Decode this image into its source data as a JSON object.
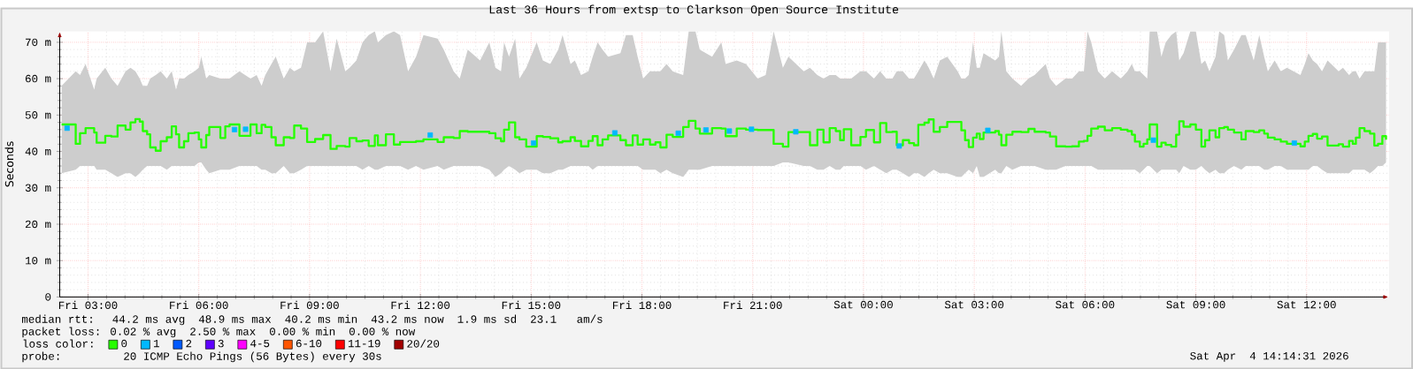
{
  "chart_data": {
    "type": "step",
    "title": "Last 36 Hours from extsp to Clarkson Open Source Institute",
    "ylabel": "Seconds",
    "legend_title": "loss color:",
    "legend": "bottom",
    "grid": true,
    "xlim": [
      "2026-04-03T02:14",
      "2026-04-04T14:14"
    ],
    "ylim": [
      0,
      73
    ],
    "xticks": [
      {
        "value": "2026-04-03T03:00",
        "label": "Fri 03:00"
      },
      {
        "value": "2026-04-03T06:00",
        "label": "Fri 06:00"
      },
      {
        "value": "2026-04-03T09:00",
        "label": "Fri 09:00"
      },
      {
        "value": "2026-04-03T12:00",
        "label": "Fri 12:00"
      },
      {
        "value": "2026-04-03T15:00",
        "label": "Fri 15:00"
      },
      {
        "value": "2026-04-03T18:00",
        "label": "Fri 18:00"
      },
      {
        "value": "2026-04-03T21:00",
        "label": "Fri 21:00"
      },
      {
        "value": "2026-04-04T00:00",
        "label": "Sat 00:00"
      },
      {
        "value": "2026-04-04T03:00",
        "label": "Sat 03:00"
      },
      {
        "value": "2026-04-04T06:00",
        "label": "Sat 06:00"
      },
      {
        "value": "2026-04-04T09:00",
        "label": "Sat 09:00"
      },
      {
        "value": "2026-04-04T12:00",
        "label": "Sat 12:00"
      }
    ],
    "yticks": [
      0,
      {
        "value": 10,
        "label": "10 m"
      },
      {
        "value": 20,
        "label": "20 m"
      },
      {
        "value": 30,
        "label": "30 m"
      },
      {
        "value": 40,
        "label": "40 m"
      },
      {
        "value": 50,
        "label": "50 m"
      },
      {
        "value": 60,
        "label": "60 m"
      },
      {
        "value": 70,
        "label": "70 m"
      }
    ],
    "annotations": [
      "median rtt:  44.2 ms avg  48.9 ms max  40.2 ms min  43.2 ms now  1.9 ms sd  23.1   am/s",
      "packet loss: 0.02 % avg  2.50 % max  0.00 % min  0.00 % now",
      "probe:       20 ICMP Echo Pings (56 Bytes) every 30s",
      "Sat Apr  4 14:14:31 2026"
    ],
    "series": [
      {
        "name": "0",
        "color": "#26ff00",
        "x": [
          "2026-04-03T02:17",
          "2026-04-03T02:40",
          "2026-04-03T02:47",
          "2026-04-03T02:56",
          "2026-04-03T03:10",
          "2026-04-03T03:14",
          "2026-04-03T03:28",
          "2026-04-03T03:38",
          "2026-04-03T03:48",
          "2026-04-03T04:01",
          "2026-04-03T04:09",
          "2026-04-03T04:17",
          "2026-04-03T04:24",
          "2026-04-03T04:29",
          "2026-04-03T04:36",
          "2026-04-03T04:41",
          "2026-04-03T04:50",
          "2026-04-03T04:58",
          "2026-04-03T05:08",
          "2026-04-03T05:16",
          "2026-04-03T05:23",
          "2026-04-03T05:28",
          "2026-04-03T05:36",
          "2026-04-03T05:43",
          "2026-04-03T05:53",
          "2026-04-03T06:00",
          "2026-04-03T06:04",
          "2026-04-03T06:12",
          "2026-04-03T06:17",
          "2026-04-03T06:35",
          "2026-04-03T06:43",
          "2026-04-03T06:50",
          "2026-04-03T07:06",
          "2026-04-03T07:24",
          "2026-04-03T07:34",
          "2026-04-03T07:42",
          "2026-04-03T07:48",
          "2026-04-03T07:58",
          "2026-04-03T08:05",
          "2026-04-03T08:18",
          "2026-04-03T08:28",
          "2026-04-03T08:35",
          "2026-04-03T08:46",
          "2026-04-03T08:56",
          "2026-04-03T09:09",
          "2026-04-03T09:22",
          "2026-04-03T09:34",
          "2026-04-03T09:44",
          "2026-04-03T09:58",
          "2026-04-03T10:05",
          "2026-04-03T10:16",
          "2026-04-03T10:26",
          "2026-04-03T10:36",
          "2026-04-03T10:46",
          "2026-04-03T10:51",
          "2026-04-03T11:04",
          "2026-04-03T11:17",
          "2026-04-03T11:27",
          "2026-04-03T11:40",
          "2026-04-03T11:53",
          "2026-04-03T12:05",
          "2026-04-03T12:28",
          "2026-04-03T12:38",
          "2026-04-03T12:54",
          "2026-04-03T13:04",
          "2026-04-03T13:17",
          "2026-04-03T13:37",
          "2026-04-03T13:52",
          "2026-04-03T14:02",
          "2026-04-03T14:11",
          "2026-04-03T14:16",
          "2026-04-03T14:24",
          "2026-04-03T14:34",
          "2026-04-03T14:41",
          "2026-04-03T14:52",
          "2026-04-03T15:09",
          "2026-04-03T15:19",
          "2026-04-03T15:31",
          "2026-04-03T15:44",
          "2026-04-03T15:51",
          "2026-04-03T16:04",
          "2026-04-03T16:11",
          "2026-04-03T16:21",
          "2026-04-03T16:33",
          "2026-04-03T16:40",
          "2026-04-03T16:48",
          "2026-04-03T16:56",
          "2026-04-03T17:05",
          "2026-04-03T17:25",
          "2026-04-03T17:34",
          "2026-04-03T17:45",
          "2026-04-03T17:53",
          "2026-04-03T18:02",
          "2026-04-03T18:13",
          "2026-04-03T18:22",
          "2026-04-03T18:30",
          "2026-04-03T18:40",
          "2026-04-03T18:50",
          "2026-04-03T19:07",
          "2026-04-03T19:16",
          "2026-04-03T19:27",
          "2026-04-03T19:34",
          "2026-04-03T19:54",
          "2026-04-03T20:09",
          "2026-04-03T20:16",
          "2026-04-03T20:34",
          "2026-04-03T20:49",
          "2026-04-03T21:08",
          "2026-04-03T21:21",
          "2026-04-03T21:34",
          "2026-04-03T21:49",
          "2026-04-03T21:58",
          "2026-04-03T22:23",
          "2026-04-03T22:33",
          "2026-04-03T22:45",
          "2026-04-03T22:55",
          "2026-04-03T23:05",
          "2026-04-03T23:15",
          "2026-04-03T23:22",
          "2026-04-03T23:28",
          "2026-04-03T23:40",
          "2026-04-03T23:55",
          "2026-04-04T00:04",
          "2026-04-04T00:17",
          "2026-04-04T00:27",
          "2026-04-04T00:37",
          "2026-04-04T00:47",
          "2026-04-04T00:54",
          "2026-04-04T01:04",
          "2026-04-04T01:14",
          "2026-04-04T01:22",
          "2026-04-04T01:29",
          "2026-04-04T01:39",
          "2026-04-04T01:46",
          "2026-04-04T01:54",
          "2026-04-04T02:04",
          "2026-04-04T02:16",
          "2026-04-04T02:33",
          "2026-04-04T02:39",
          "2026-04-04T02:45",
          "2026-04-04T02:51",
          "2026-04-04T02:58",
          "2026-04-04T03:04",
          "2026-04-04T03:09",
          "2026-04-04T03:15",
          "2026-04-04T03:34",
          "2026-04-04T03:40",
          "2026-04-04T03:44",
          "2026-04-04T03:52",
          "2026-04-04T04:02",
          "2026-04-04T04:16",
          "2026-04-04T04:28",
          "2026-04-04T04:38",
          "2026-04-04T04:56",
          "2026-04-04T05:03",
          "2026-04-04T05:13",
          "2026-04-04T05:28",
          "2026-04-04T05:39",
          "2026-04-04T05:50",
          "2026-04-04T05:58",
          "2026-04-04T06:04",
          "2026-04-04T06:10",
          "2026-04-04T06:21",
          "2026-04-04T06:32",
          "2026-04-04T06:44",
          "2026-04-04T06:58",
          "2026-04-04T07:09",
          "2026-04-04T07:16",
          "2026-04-04T07:21",
          "2026-04-04T07:29",
          "2026-04-04T07:35",
          "2026-04-04T07:41",
          "2026-04-04T07:45",
          "2026-04-04T07:57",
          "2026-04-04T08:04",
          "2026-04-04T08:11",
          "2026-04-04T08:20",
          "2026-04-04T08:28",
          "2026-04-04T08:33",
          "2026-04-04T08:40",
          "2026-04-04T08:51",
          "2026-04-04T09:00",
          "2026-04-04T09:09",
          "2026-04-04T09:15",
          "2026-04-04T09:22",
          "2026-04-04T09:32",
          "2026-04-04T09:38",
          "2026-04-04T09:46",
          "2026-04-04T09:52",
          "2026-04-04T10:02",
          "2026-04-04T10:14",
          "2026-04-04T10:21",
          "2026-04-04T10:34",
          "2026-04-04T10:43",
          "2026-04-04T10:51",
          "2026-04-04T10:57",
          "2026-04-04T11:08",
          "2026-04-04T11:18",
          "2026-04-04T11:28",
          "2026-04-04T11:50",
          "2026-04-04T11:57",
          "2026-04-04T12:03",
          "2026-04-04T12:10",
          "2026-04-04T12:17",
          "2026-04-04T12:25",
          "2026-04-04T12:34",
          "2026-04-04T12:52",
          "2026-04-04T12:59",
          "2026-04-04T13:09",
          "2026-04-04T13:15",
          "2026-04-04T13:20",
          "2026-04-04T13:26",
          "2026-04-04T13:34",
          "2026-04-04T13:43",
          "2026-04-04T13:50",
          "2026-04-04T13:56",
          "2026-04-04T14:03",
          "2026-04-04T14:09"
        ],
        "values": [
          47.4,
          42.1,
          45,
          46.4,
          45.2,
          42.4,
          44.3,
          44.1,
          47.1,
          46,
          48,
          48.9,
          48.2,
          45.6,
          44.7,
          41.1,
          40.2,
          42.8,
          43.9,
          46.9,
          44.7,
          41.1,
          42.8,
          45,
          45.2,
          43.3,
          41.1,
          44.5,
          46.7,
          43.7,
          46.9,
          47.4,
          44.3,
          47.4,
          45,
          47.3,
          46.7,
          43.9,
          41.7,
          43.9,
          43.7,
          47.1,
          46.3,
          42.6,
          43.4,
          44.5,
          40.7,
          41.5,
          41.3,
          43.7,
          42.8,
          43,
          41.5,
          44.4,
          41.7,
          44.7,
          41.9,
          42.6,
          42.6,
          42.8,
          43.3,
          42.6,
          43.9,
          43.7,
          45.6,
          45.4,
          45.4,
          45,
          43.6,
          42.8,
          46,
          48,
          43.9,
          43.3,
          41.3,
          44.2,
          44,
          43.6,
          42.5,
          42.8,
          43.9,
          42.9,
          41.4,
          42.9,
          44.2,
          41.7,
          43.3,
          44.4,
          43.1,
          41.7,
          44.4,
          41.9,
          43.3,
          41.9,
          42.5,
          41.1,
          44.6,
          44,
          46.7,
          48.4,
          46.3,
          44.9,
          46.4,
          46.3,
          44.2,
          46.3,
          46,
          45.9,
          45.9,
          42.1,
          41.3,
          45.3,
          45.3,
          41.7,
          46,
          42.5,
          46.4,
          45.6,
          43.1,
          46.1,
          41.7,
          44,
          45.9,
          42.5,
          47.8,
          45.3,
          45.4,
          41.7,
          43.1,
          42.3,
          41.7,
          47.3,
          47.9,
          48.8,
          45.4,
          46.7,
          48.1,
          48.1,
          45.8,
          43.1,
          41.2,
          43.8,
          44.9,
          43.4,
          45.2,
          45.6,
          44.6,
          41.7,
          44.6,
          45.4,
          45.3,
          46.2,
          45.4,
          45.2,
          44.1,
          41.4,
          41.3,
          41.4,
          42.7,
          42.9,
          44.3,
          46.3,
          46.8,
          45.8,
          46.4,
          46,
          45.6,
          44.6,
          42.7,
          41.3,
          42.1,
          43.3,
          47.4,
          41.3,
          42.4,
          41.8,
          41.3,
          44.6,
          48.3,
          46.8,
          47.4,
          46,
          41.3,
          43.1,
          45.8,
          43.9,
          46.4,
          46.7,
          46,
          45.2,
          43.3,
          45.6,
          45.3,
          45.8,
          44.9,
          43.8,
          43.3,
          42.7,
          42.1,
          41.4,
          42.7,
          44.3,
          44.8,
          43.5,
          44.1,
          41.6,
          42,
          41.3,
          42.9,
          42.1,
          43.8,
          46.4,
          45.6,
          44.9,
          41.6,
          42.1,
          44.2,
          43.2
        ],
        "lower": [
          34,
          35,
          36,
          36,
          36,
          35,
          35,
          34,
          33,
          34,
          34,
          33,
          34,
          35,
          36,
          36,
          36,
          36,
          35,
          36,
          36,
          36,
          36,
          36,
          36,
          37,
          37,
          35,
          34,
          35,
          35,
          35,
          36,
          36,
          36,
          35,
          35,
          34,
          34,
          36,
          34,
          34,
          35,
          36,
          36,
          36,
          36,
          36,
          36,
          36,
          36,
          35,
          36,
          35,
          35,
          36,
          36,
          36,
          35,
          36,
          35,
          36,
          35,
          36,
          36,
          36,
          36,
          35,
          33,
          34,
          35,
          36,
          35,
          34,
          35,
          35,
          34,
          34,
          35,
          35,
          36,
          36,
          36,
          36,
          35,
          36,
          36,
          36,
          36,
          36,
          36,
          36,
          35,
          35,
          35,
          34,
          35,
          34,
          33,
          35,
          35,
          35,
          36,
          36,
          36,
          36,
          36,
          36,
          36,
          36,
          37,
          37,
          36,
          36,
          35,
          35,
          36,
          35,
          35,
          36,
          36,
          36,
          35,
          36,
          35,
          34,
          35,
          35,
          34,
          33,
          34,
          34,
          33,
          34,
          35,
          34,
          34,
          33,
          33,
          34,
          35,
          34,
          36,
          33,
          33,
          35,
          34,
          34,
          36,
          35,
          36,
          36,
          36,
          35,
          35,
          35,
          36,
          36,
          36,
          36,
          36,
          36,
          35,
          35,
          35,
          35,
          35,
          35,
          35,
          34,
          35,
          36,
          36,
          34,
          35,
          35,
          35,
          35,
          34,
          36,
          35,
          35,
          36,
          35,
          34,
          35,
          34,
          34,
          35,
          36,
          35,
          36,
          36,
          36,
          35,
          35,
          36,
          36,
          35,
          35,
          35,
          35,
          36,
          36,
          35,
          34,
          34,
          34,
          34,
          35,
          35,
          35,
          35,
          34,
          35,
          36,
          36,
          37
        ],
        "upper": [
          58,
          62,
          61,
          64,
          57,
          60,
          63,
          60,
          58,
          62,
          63,
          62,
          60,
          58,
          58,
          60,
          61,
          62,
          60,
          62,
          57,
          60,
          60,
          61,
          62,
          63,
          66,
          60,
          61,
          60,
          60,
          60,
          62,
          60,
          61,
          58,
          61,
          64,
          66,
          60,
          63,
          62,
          63,
          70,
          70,
          73,
          62,
          71,
          62,
          63,
          65,
          70,
          72,
          73,
          70,
          72,
          73,
          72,
          62,
          66,
          72,
          71,
          68,
          62,
          60,
          68,
          65,
          70,
          63,
          62,
          70,
          66,
          71,
          60,
          63,
          70,
          65,
          64,
          68,
          72,
          64,
          65,
          61,
          62,
          66,
          70,
          68,
          66,
          67,
          72,
          72,
          66,
          60,
          62,
          62,
          62,
          64,
          62,
          61,
          73,
          73,
          68,
          66,
          70,
          64,
          65,
          64,
          60,
          61,
          73,
          63,
          66,
          62,
          63,
          61,
          60,
          61,
          61,
          60,
          60,
          60,
          62,
          62,
          60,
          62,
          60,
          60,
          62,
          62,
          60,
          60,
          62,
          65,
          63,
          60,
          65,
          66,
          62,
          60,
          60,
          61,
          70,
          63,
          63,
          67,
          65,
          66,
          73,
          62,
          60,
          58,
          60,
          61,
          64,
          60,
          58,
          60,
          60,
          62,
          62,
          73,
          70,
          62,
          60,
          62,
          60,
          62,
          64,
          62,
          62,
          61,
          60,
          73,
          73,
          66,
          70,
          72,
          73,
          65,
          67,
          73,
          73,
          64,
          65,
          62,
          66,
          73,
          72,
          65,
          68,
          72,
          72,
          65,
          72,
          66,
          62,
          65,
          62,
          63,
          61,
          64,
          67,
          65,
          64,
          62,
          65,
          62,
          63,
          61,
          62,
          62,
          60,
          62,
          62,
          62,
          70,
          70,
          70
        ]
      },
      {
        "name": "1",
        "color": "#00b8ff",
        "type": "scatter",
        "marker": "square",
        "x": [
          "2026-04-03T02:26",
          "2026-04-03T06:58",
          "2026-04-03T07:16",
          "2026-04-03T12:16",
          "2026-04-03T15:04",
          "2026-04-03T17:16",
          "2026-04-03T18:59",
          "2026-04-03T19:44",
          "2026-04-03T20:22",
          "2026-04-03T20:58",
          "2026-04-03T22:10",
          "2026-04-04T00:58",
          "2026-04-04T03:22",
          "2026-04-04T07:51",
          "2026-04-04T11:40"
        ],
        "values": [
          46.4,
          46,
          46.1,
          44.5,
          42.3,
          45.1,
          45,
          45.9,
          45.6,
          46.1,
          45.4,
          41.5,
          45.8,
          43.1,
          42.3
        ]
      },
      {
        "name": "2",
        "color": "#0059ff"
      },
      {
        "name": "3",
        "color": "#5e00ff"
      },
      {
        "name": "4-5",
        "color": "#ff00ff"
      },
      {
        "name": "6-10",
        "color": "#ff5500"
      },
      {
        "name": "11-19",
        "color": "#ff0000"
      },
      {
        "name": "20/20",
        "color": "#a10000"
      }
    ]
  }
}
